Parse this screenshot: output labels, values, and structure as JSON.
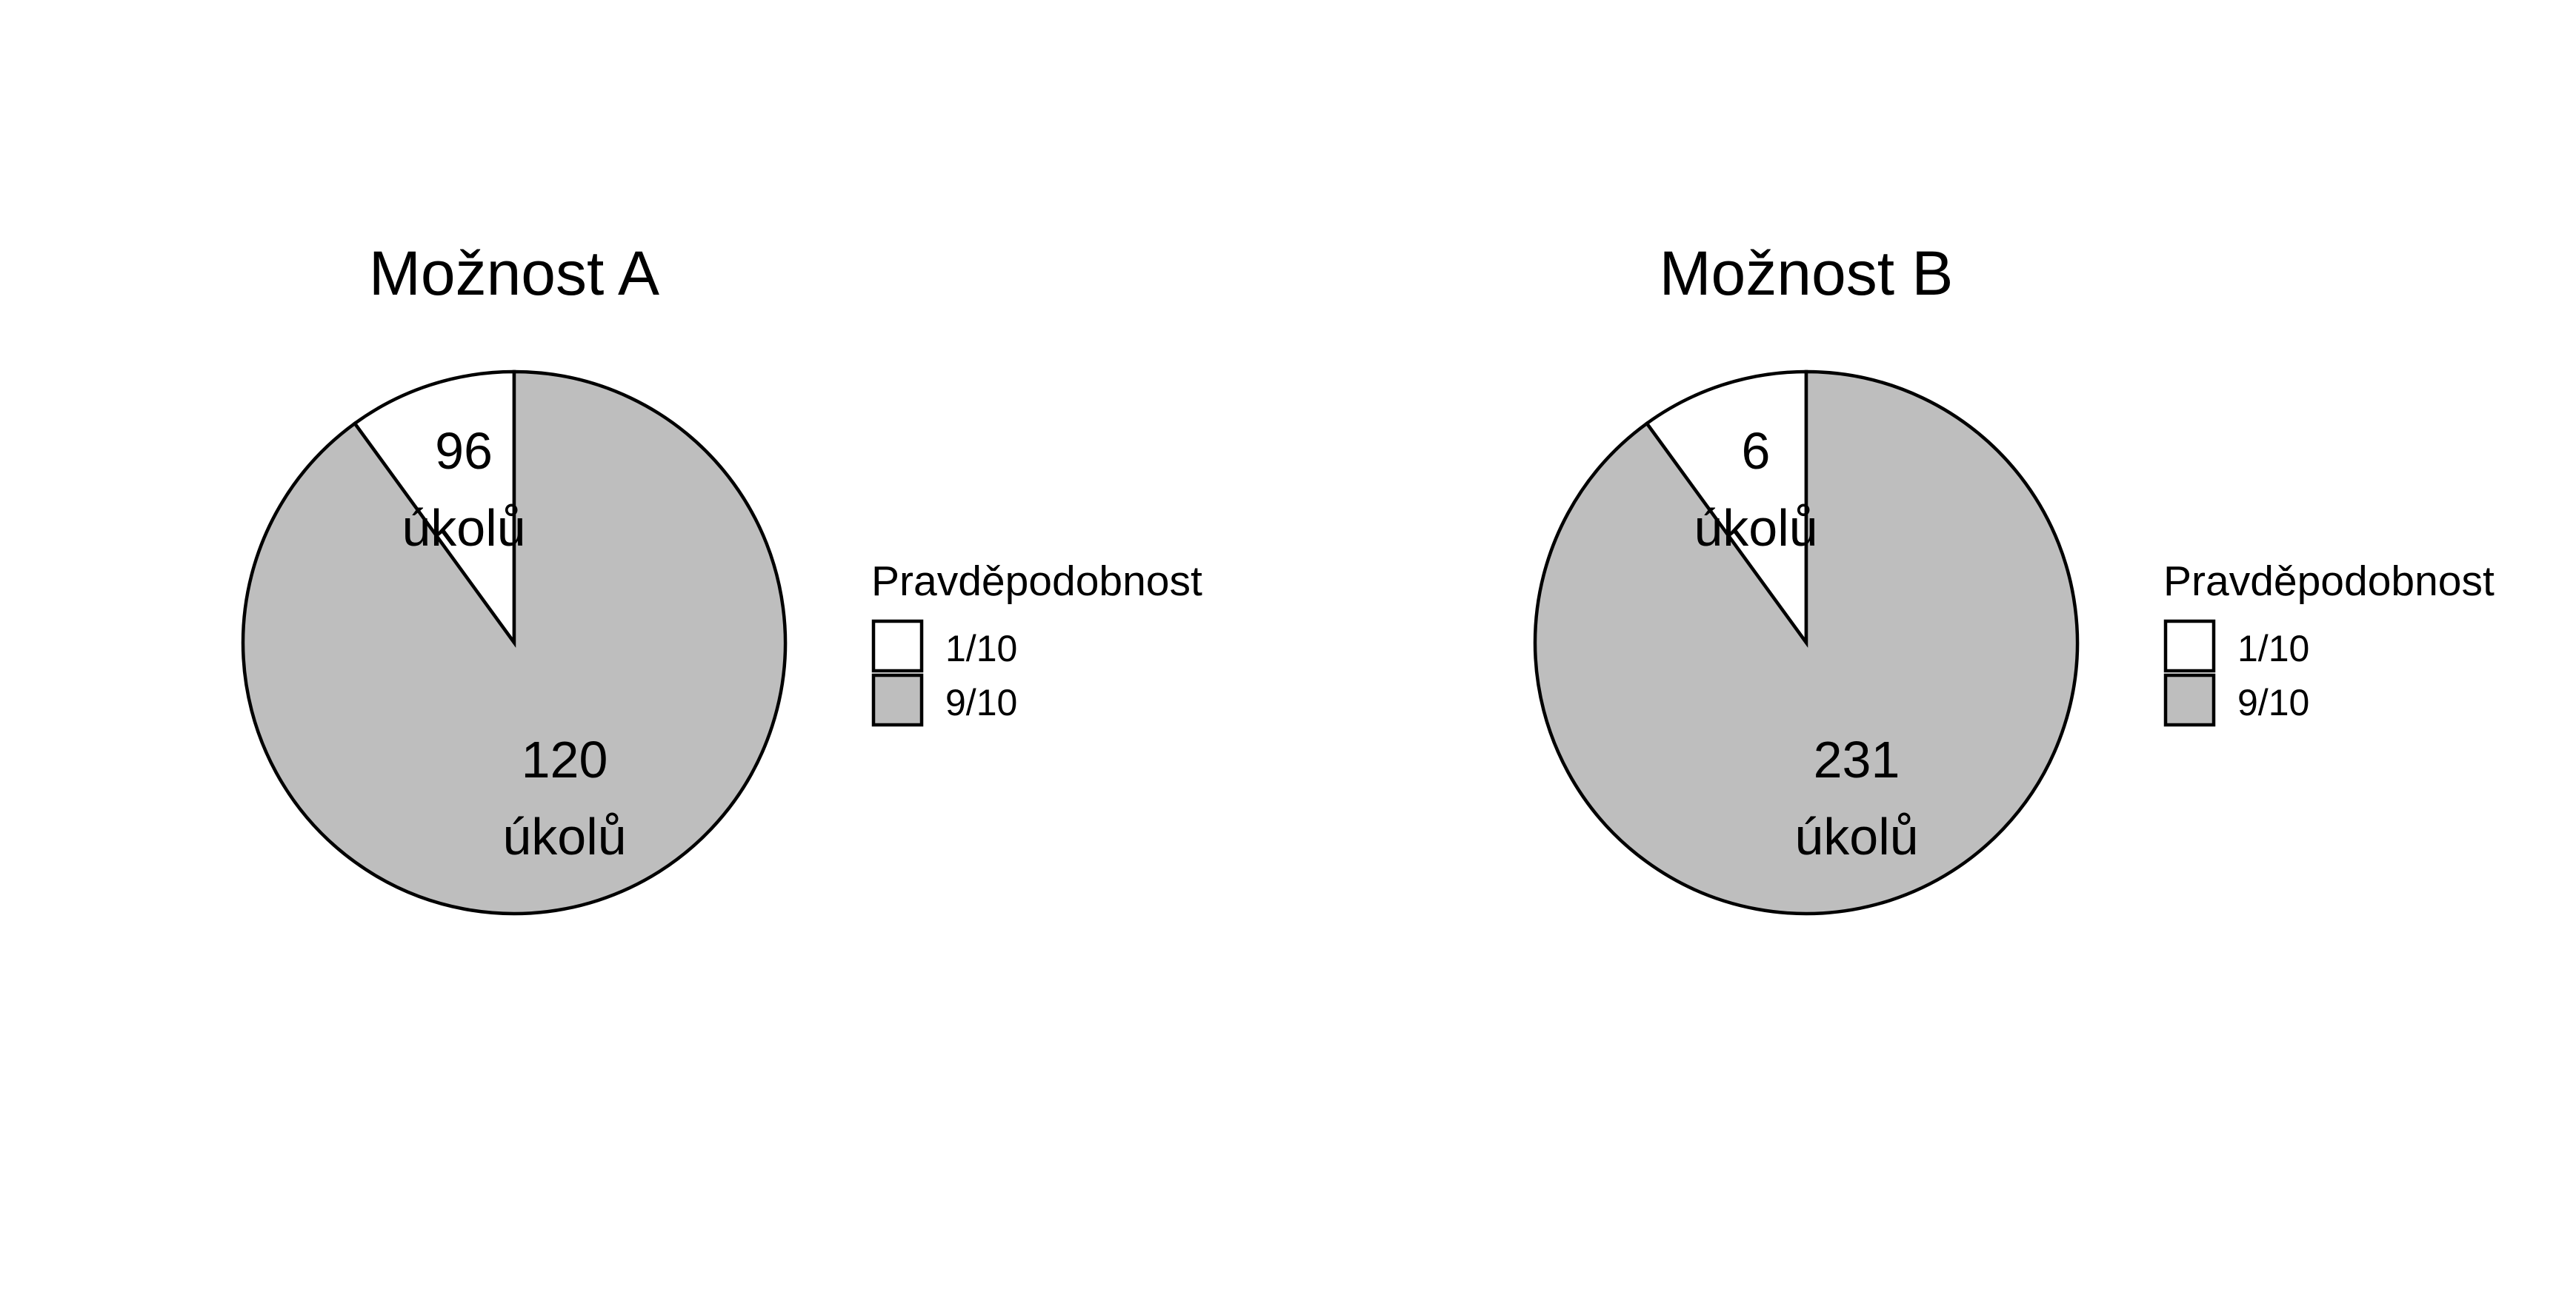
{
  "chart_data": [
    {
      "type": "pie",
      "title": "Možnost A",
      "start_angle_deg": 0,
      "direction": "counterclockwise",
      "slices": [
        {
          "category": "1/10",
          "share": 0.1,
          "label_value": "96",
          "label_unit": "úkolů"
        },
        {
          "category": "9/10",
          "share": 0.9,
          "label_value": "120",
          "label_unit": "úkolů"
        }
      ],
      "legend": {
        "title": "Pravděpodobnost",
        "position": "right",
        "items": [
          "1/10",
          "9/10"
        ]
      }
    },
    {
      "type": "pie",
      "title": "Možnost B",
      "start_angle_deg": 0,
      "direction": "counterclockwise",
      "slices": [
        {
          "category": "1/10",
          "share": 0.1,
          "label_value": "6",
          "label_unit": "úkolů"
        },
        {
          "category": "9/10",
          "share": 0.9,
          "label_value": "231",
          "label_unit": "úkolů"
        }
      ],
      "legend": {
        "title": "Pravděpodobnost",
        "position": "right",
        "items": [
          "1/10",
          "9/10"
        ]
      }
    }
  ],
  "colors": {
    "1/10": "#ffffff",
    "9/10": "#bebebe",
    "outline": "#000000"
  }
}
